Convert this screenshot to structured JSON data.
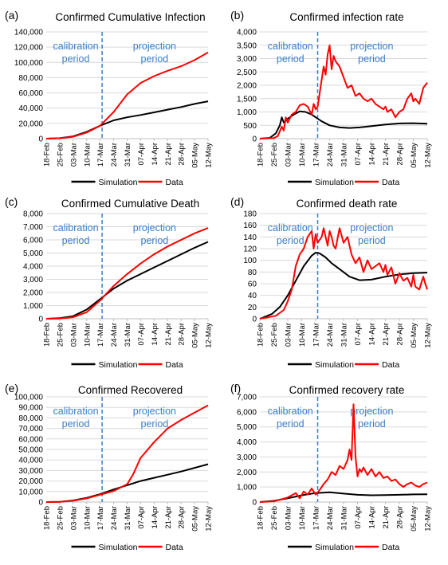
{
  "figure": {
    "legend_simulation": "Simulation",
    "legend_data": "Data",
    "colors": {
      "simulation": "#000000",
      "data": "#ff0000",
      "divider": "#3a7dc9",
      "annotation": "#3a7dc9",
      "grid": "#d9d9d9"
    }
  },
  "chart_data": [
    {
      "panel": "(a)",
      "type": "line",
      "title": "Confirmed Cumulative Infection",
      "ylim": [
        0,
        140000
      ],
      "yticks": [
        "0",
        "20,000",
        "40,000",
        "60,000",
        "80,000",
        "100,000",
        "120,000",
        "140,000"
      ],
      "xticks": [
        "18-Feb",
        "25-Feb",
        "03-Mar",
        "10-Mar",
        "17-Mar",
        "24-Mar",
        "31-Mar",
        "07-Apr",
        "14-Apr",
        "21-Apr",
        "28-Apr",
        "05-May",
        "12-May"
      ],
      "annotations": {
        "left": [
          "calibration",
          "period"
        ],
        "right": [
          "projection",
          "period"
        ]
      },
      "legend": "bottom-center",
      "series": [
        {
          "name": "Simulation",
          "x": [
            0,
            7,
            14,
            21,
            28,
            35,
            42,
            49,
            56,
            63,
            70,
            77,
            84
          ],
          "y": [
            0,
            600,
            3000,
            9000,
            17000,
            24000,
            28000,
            31000,
            34500,
            38000,
            41500,
            45500,
            49000
          ]
        },
        {
          "name": "Data",
          "x": [
            0,
            7,
            14,
            21,
            28,
            35,
            42,
            49,
            56,
            63,
            70,
            77,
            84
          ],
          "y": [
            0,
            500,
            2500,
            8000,
            17000,
            35000,
            58000,
            73000,
            82000,
            89000,
            95000,
            103000,
            113000
          ]
        }
      ]
    },
    {
      "panel": "(b)",
      "type": "line",
      "title": "Confirmed infection rate",
      "ylim": [
        0,
        4000
      ],
      "yticks": [
        "0",
        "500",
        "1,000",
        "1,500",
        "2,000",
        "2,500",
        "3,000",
        "3,500",
        "4,000"
      ],
      "xticks": [
        "18-Feb",
        "25-Feb",
        "03-Mar",
        "10-Mar",
        "17-Mar",
        "24-Mar",
        "31-Mar",
        "07-Apr",
        "14-Apr",
        "21-Apr",
        "28-Apr",
        "05-May",
        "12-May"
      ],
      "annotations": {
        "left": [
          "calibration",
          "period"
        ],
        "right": [
          "projection",
          "period"
        ]
      },
      "legend": "bottom-center",
      "series": [
        {
          "name": "Simulation",
          "x": [
            0,
            5,
            8,
            10,
            11,
            12,
            14,
            17,
            20,
            23,
            26,
            28,
            31,
            35,
            40,
            45,
            50,
            56,
            63,
            70,
            77,
            84
          ],
          "y": [
            0,
            30,
            200,
            500,
            800,
            600,
            750,
            900,
            1020,
            1000,
            900,
            800,
            650,
            500,
            420,
            400,
            420,
            470,
            530,
            570,
            580,
            560
          ]
        },
        {
          "name": "Data",
          "x": [
            0,
            7,
            9,
            11,
            12,
            13,
            14,
            16,
            18,
            20,
            22,
            24,
            26,
            27,
            28,
            29,
            30,
            31,
            32,
            33,
            34,
            35,
            36,
            37,
            38,
            40,
            42,
            44,
            46,
            48,
            50,
            52,
            54,
            56,
            58,
            60,
            62,
            63,
            64,
            66,
            68,
            70,
            72,
            74,
            76,
            77,
            78,
            80,
            82,
            84
          ],
          "y": [
            0,
            20,
            100,
            450,
            300,
            800,
            600,
            900,
            1000,
            1250,
            1300,
            1200,
            900,
            1300,
            1100,
            1200,
            1700,
            2200,
            2700,
            2400,
            3150,
            3500,
            2600,
            3100,
            2900,
            2700,
            2300,
            1900,
            2000,
            1600,
            1700,
            1500,
            1400,
            1500,
            1300,
            1200,
            1100,
            1200,
            1000,
            1100,
            800,
            1000,
            1100,
            1500,
            1700,
            1400,
            1500,
            1300,
            1900,
            2100
          ]
        }
      ]
    },
    {
      "panel": "(c)",
      "type": "line",
      "title": "Confirmed Cumulative Death",
      "ylim": [
        0,
        8000
      ],
      "yticks": [
        "0",
        "1,000",
        "2,000",
        "3,000",
        "4,000",
        "5,000",
        "6,000",
        "7,000",
        "8,000"
      ],
      "xticks": [
        "18-Feb",
        "25-Feb",
        "03-Mar",
        "10-Mar",
        "17-Mar",
        "24-Mar",
        "31-Mar",
        "07-Apr",
        "14-Apr",
        "21-Apr",
        "28-Apr",
        "05-May",
        "12-May"
      ],
      "annotations": {
        "left": [
          "calibration",
          "period"
        ],
        "right": [
          "projection",
          "period"
        ]
      },
      "legend": "bottom-center",
      "series": [
        {
          "name": "Simulation",
          "x": [
            0,
            7,
            14,
            21,
            28,
            35,
            42,
            49,
            56,
            63,
            70,
            77,
            84
          ],
          "y": [
            0,
            40,
            200,
            700,
            1500,
            2300,
            2900,
            3400,
            3900,
            4400,
            4900,
            5400,
            5850
          ]
        },
        {
          "name": "Data",
          "x": [
            0,
            7,
            14,
            21,
            28,
            35,
            42,
            49,
            56,
            63,
            70,
            77,
            84
          ],
          "y": [
            0,
            20,
            120,
            500,
            1400,
            2500,
            3400,
            4200,
            4900,
            5500,
            6000,
            6500,
            6900
          ]
        }
      ]
    },
    {
      "panel": "(d)",
      "type": "line",
      "title": "Confirmed death rate",
      "ylim": [
        0,
        180
      ],
      "yticks": [
        "0",
        "20",
        "40",
        "60",
        "80",
        "100",
        "120",
        "140",
        "160",
        "180"
      ],
      "xticks": [
        "18-Feb",
        "25-Feb",
        "03-Mar",
        "10-Mar",
        "17-Mar",
        "24-Mar",
        "31-Mar",
        "07-Apr",
        "14-Apr",
        "21-Apr",
        "28-Apr",
        "05-May",
        "12-May"
      ],
      "annotations": {
        "left": [
          "calibration",
          "period"
        ],
        "right": [
          "projection",
          "period"
        ]
      },
      "legend": "bottom-center",
      "series": [
        {
          "name": "Simulation",
          "x": [
            0,
            6,
            10,
            14,
            18,
            22,
            26,
            28,
            30,
            33,
            36,
            40,
            45,
            50,
            56,
            63,
            70,
            77,
            84
          ],
          "y": [
            0,
            8,
            20,
            40,
            65,
            90,
            108,
            113,
            112,
            105,
            95,
            85,
            72,
            66,
            67,
            72,
            76,
            78,
            79
          ]
        },
        {
          "name": "Data",
          "x": [
            0,
            8,
            12,
            14,
            16,
            18,
            20,
            22,
            24,
            26,
            27,
            28,
            29,
            30,
            31,
            32,
            33,
            34,
            35,
            36,
            37,
            38,
            40,
            42,
            44,
            46,
            48,
            50,
            52,
            54,
            56,
            58,
            60,
            62,
            63,
            64,
            66,
            68,
            70,
            72,
            74,
            76,
            77,
            78,
            80,
            82,
            83,
            84
          ],
          "y": [
            0,
            5,
            15,
            30,
            50,
            90,
            110,
            120,
            140,
            150,
            120,
            145,
            130,
            135,
            140,
            155,
            140,
            125,
            150,
            140,
            125,
            120,
            155,
            130,
            140,
            110,
            95,
            105,
            80,
            100,
            85,
            90,
            95,
            80,
            92,
            75,
            88,
            60,
            78,
            65,
            70,
            55,
            75,
            55,
            50,
            72,
            60,
            50
          ]
        }
      ]
    },
    {
      "panel": "(e)",
      "type": "line",
      "title": "Confirmed Recovered",
      "ylim": [
        0,
        100000
      ],
      "yticks": [
        "0",
        "10,000",
        "20,000",
        "30,000",
        "40,000",
        "50,000",
        "60,000",
        "70,000",
        "80,000",
        "90,000",
        "100,000"
      ],
      "xticks": [
        "18-Feb",
        "25-Feb",
        "03-Mar",
        "10-Mar",
        "17-Mar",
        "24-Mar",
        "31-Mar",
        "07-Apr",
        "14-Apr",
        "21-Apr",
        "28-Apr",
        "05-May",
        "12-May"
      ],
      "annotations": {
        "left": [
          "calibration",
          "period"
        ],
        "right": [
          "projection",
          "period"
        ]
      },
      "legend": "bottom-center",
      "series": [
        {
          "name": "Simulation",
          "x": [
            0,
            7,
            14,
            21,
            28,
            35,
            42,
            49,
            56,
            63,
            70,
            77,
            84
          ],
          "y": [
            0,
            200,
            1500,
            4000,
            7500,
            12000,
            16000,
            20000,
            23000,
            26000,
            29000,
            32500,
            36000
          ]
        },
        {
          "name": "Data",
          "x": [
            0,
            7,
            14,
            21,
            28,
            35,
            42,
            45,
            49,
            56,
            63,
            70,
            77,
            84
          ],
          "y": [
            0,
            150,
            1200,
            3500,
            7000,
            10500,
            17000,
            26000,
            42000,
            57000,
            70000,
            78000,
            85000,
            92000
          ]
        }
      ]
    },
    {
      "panel": "(f)",
      "type": "line",
      "title": "Confirmed recovery rate",
      "ylim": [
        0,
        7000
      ],
      "yticks": [
        "0",
        "1,000",
        "2,000",
        "3,000",
        "4,000",
        "5,000",
        "6,000",
        "7,000"
      ],
      "xticks": [
        "18-Feb",
        "25-Feb",
        "03-Mar",
        "10-Mar",
        "17-Mar",
        "24-Mar",
        "31-Mar",
        "07-Apr",
        "14-Apr",
        "21-Apr",
        "28-Apr",
        "05-May",
        "12-May"
      ],
      "annotations": {
        "left": [
          "calibration",
          "period"
        ],
        "right": [
          "projection",
          "period"
        ]
      },
      "legend": "bottom-center",
      "series": [
        {
          "name": "Simulation",
          "x": [
            0,
            7,
            14,
            21,
            28,
            35,
            42,
            49,
            56,
            63,
            70,
            77,
            84
          ],
          "y": [
            0,
            80,
            250,
            450,
            600,
            650,
            560,
            480,
            450,
            460,
            480,
            510,
            520
          ]
        },
        {
          "name": "Data",
          "x": [
            0,
            7,
            14,
            18,
            20,
            22,
            24,
            26,
            28,
            30,
            32,
            34,
            36,
            38,
            40,
            42,
            44,
            45,
            46,
            47,
            48,
            49,
            50,
            51,
            52,
            54,
            56,
            58,
            60,
            62,
            64,
            66,
            68,
            70,
            72,
            74,
            76,
            78,
            80,
            82,
            84
          ],
          "y": [
            0,
            50,
            300,
            600,
            250,
            700,
            500,
            900,
            500,
            800,
            1200,
            1500,
            2000,
            1800,
            2400,
            2200,
            2800,
            3500,
            2800,
            6500,
            3000,
            1700,
            2200,
            2000,
            2300,
            1800,
            2200,
            1700,
            2000,
            1600,
            1700,
            1400,
            1500,
            1200,
            1000,
            1200,
            1300,
            1100,
            1000,
            1200,
            1300
          ]
        }
      ]
    }
  ]
}
